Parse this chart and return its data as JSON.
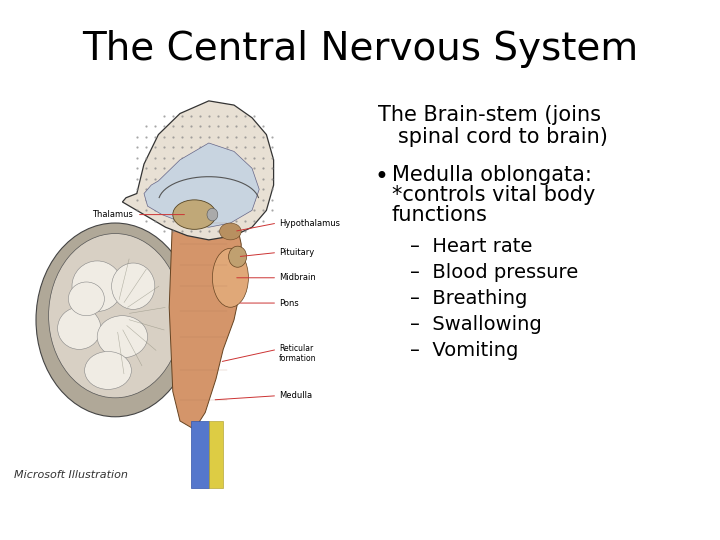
{
  "title": "The Central Nervous System",
  "title_fontsize": 28,
  "bg_color": "#ffffff",
  "text_color": "#000000",
  "heading_line1": "The Brain-stem (joins",
  "heading_line2": "   spinal cord to brain)",
  "heading_fontsize": 15,
  "bullet_marker": "•",
  "bullet_line1": "Medulla oblongata:",
  "bullet_line2": "*controls vital body",
  "bullet_line3": "functions",
  "bullet_fontsize": 15,
  "dash_items": [
    "Heart rate",
    "Blood pressure",
    "Breathing",
    "Swallowing",
    "Vomiting"
  ],
  "dash_fontsize": 14,
  "credit_text": "Microsoft Illustration",
  "credit_fontsize": 8,
  "label_fontsize": 6,
  "label_color": "#000000",
  "line_color": "#cc3333"
}
